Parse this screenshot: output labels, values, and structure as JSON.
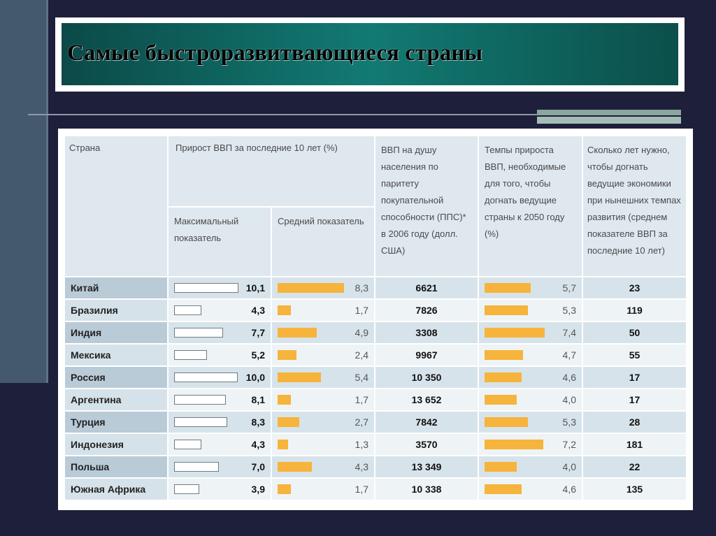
{
  "slide": {
    "title": "Самые быстроразвитвающиеся страны"
  },
  "table": {
    "headers": {
      "country": "Страна",
      "gdp_growth": "Прирост ВВП за последние 10 лет (%)",
      "max": "Максимальный показатель",
      "avg": "Средний показатель",
      "gdp_ppp": "ВВП на душу населения по паритету покупательной способности (ППС)* в 2006 году (долл. США)",
      "needed": "Темпы прироста ВВП, необходимые для того, чтобы догнать ведущие страны к 2050 году (%)",
      "years": "Сколько лет нужно, чтобы догнать ведущие экономики при нынешних темпах развития (среднем показателе ВВП за последние 10 лет)"
    },
    "rows": [
      {
        "country": "Китай",
        "max": "10,1",
        "max_level": 10.1,
        "avg": "8,3",
        "avg_level": 8.3,
        "gdp": "6621",
        "needed": "5,7",
        "needed_level": 5.7,
        "years": "23"
      },
      {
        "country": "Бразилия",
        "max": "4,3",
        "max_level": 4.3,
        "avg": "1,7",
        "avg_level": 1.7,
        "gdp": "7826",
        "needed": "5,3",
        "needed_level": 5.3,
        "years": "119"
      },
      {
        "country": "Индия",
        "max": "7,7",
        "max_level": 7.7,
        "avg": "4,9",
        "avg_level": 4.9,
        "gdp": "3308",
        "needed": "7,4",
        "needed_level": 7.4,
        "years": "50"
      },
      {
        "country": "Мексика",
        "max": "5,2",
        "max_level": 5.2,
        "avg": "2,4",
        "avg_level": 2.4,
        "gdp": "9967",
        "needed": "4,7",
        "needed_level": 4.7,
        "years": "55"
      },
      {
        "country": "Россия",
        "max": "10,0",
        "max_level": 10.0,
        "avg": "5,4",
        "avg_level": 5.4,
        "gdp": "10 350",
        "needed": "4,6",
        "needed_level": 4.6,
        "years": "17"
      },
      {
        "country": "Аргентина",
        "max": "8,1",
        "max_level": 8.1,
        "avg": "1,7",
        "avg_level": 1.7,
        "gdp": "13 652",
        "needed": "4,0",
        "needed_level": 4.0,
        "years": "17"
      },
      {
        "country": "Турция",
        "max": "8,3",
        "max_level": 8.3,
        "avg": "2,7",
        "avg_level": 2.7,
        "gdp": "7842",
        "needed": "5,3",
        "needed_level": 5.3,
        "years": "28"
      },
      {
        "country": "Индонезия",
        "max": "4,3",
        "max_level": 4.3,
        "avg": "1,3",
        "avg_level": 1.3,
        "gdp": "3570",
        "needed": "7,2",
        "needed_level": 7.2,
        "years": "181"
      },
      {
        "country": "Польша",
        "max": "7,0",
        "max_level": 7.0,
        "avg": "4,3",
        "avg_level": 4.3,
        "gdp": "13 349",
        "needed": "4,0",
        "needed_level": 4.0,
        "years": "22"
      },
      {
        "country": "Южная Африка",
        "max": "3,9",
        "max_level": 3.9,
        "avg": "1,7",
        "avg_level": 1.7,
        "gdp": "10 338",
        "needed": "4,6",
        "needed_level": 4.6,
        "years": "135"
      }
    ]
  },
  "colors": {
    "title_bg": "#127a73",
    "page_bg": "#1e1f3a",
    "bar_orange": "#f6b43c"
  }
}
